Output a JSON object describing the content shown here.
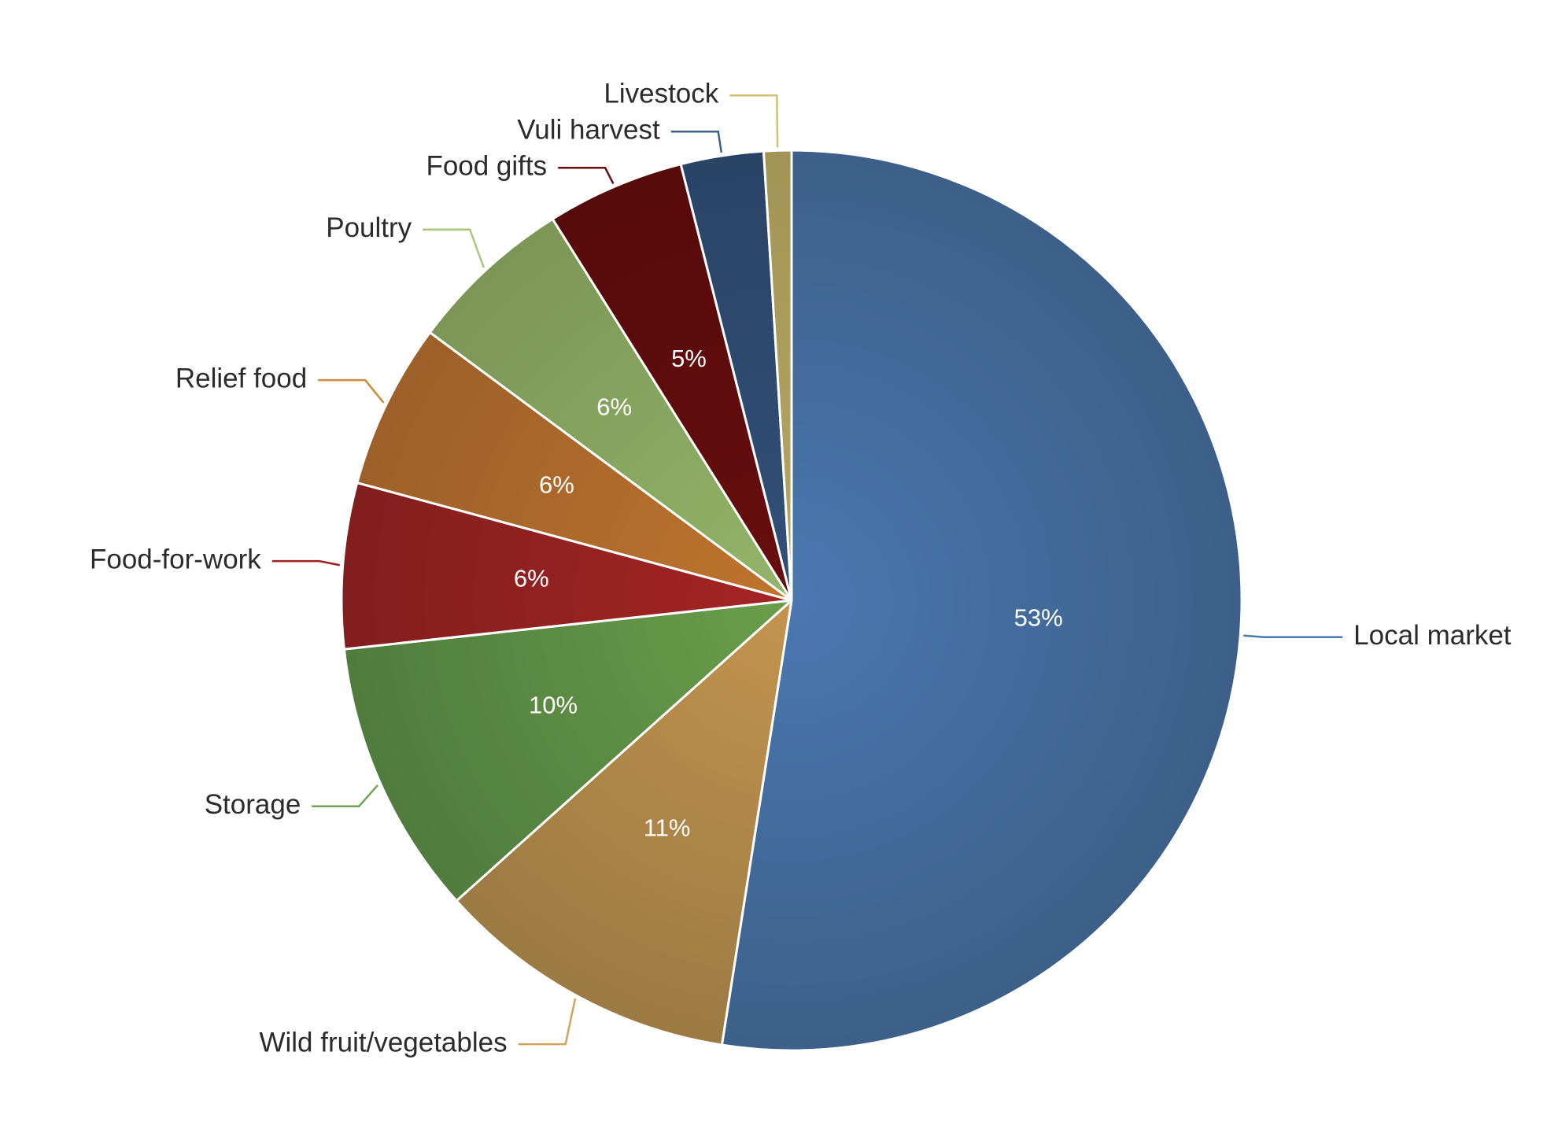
{
  "chart_data": {
    "type": "pie",
    "title": "",
    "start_angle_deg": 0,
    "direction": "clockwise",
    "legend": "none",
    "slices": [
      {
        "label": "Local market",
        "value": 53,
        "value_label": "53%",
        "color": "#4a78b0",
        "color_dark": "#3c6089",
        "label_side": "right"
      },
      {
        "label": "Wild fruit/vegetables",
        "value": 11,
        "value_label": "11%",
        "color": "#c4944e",
        "color_dark": "#9c7a44",
        "label_side": "left"
      },
      {
        "label": "Storage",
        "value": 10,
        "value_label": "10%",
        "color": "#6a9e4a",
        "color_dark": "#507c3e",
        "label_side": "left"
      },
      {
        "label": "Food-for-work",
        "value": 6,
        "value_label": "6%",
        "color": "#a62424",
        "color_dark": "#821e1e",
        "label_side": "left"
      },
      {
        "label": "Relief food",
        "value": 6,
        "value_label": "6%",
        "color": "#c0742e",
        "color_dark": "#9c6028",
        "label_side": "left"
      },
      {
        "label": "Poultry",
        "value": 6,
        "value_label": "6%",
        "color": "#93b56a",
        "color_dark": "#7c9656",
        "label_side": "left"
      },
      {
        "label": "Food gifts",
        "value": 5,
        "value_label": "5%",
        "color": "#680e0e",
        "color_dark": "#560a0a",
        "label_side": "left"
      },
      {
        "label": "Vuli harvest",
        "value": 3,
        "value_label": "",
        "color": "#324f78",
        "color_dark": "#2a4466",
        "label_side": "left"
      },
      {
        "label": "Livestock",
        "value": 1,
        "value_label": "",
        "color": "#b8a866",
        "color_dark": "#a29456",
        "label_side": "left"
      }
    ],
    "leader_colors": [
      "#4a78b0",
      "#d1a45c",
      "#6ea451",
      "#9e2020",
      "#d08a3c",
      "#a7c87a",
      "#6a0e0e",
      "#3f6088",
      "#d6c070"
    ]
  }
}
